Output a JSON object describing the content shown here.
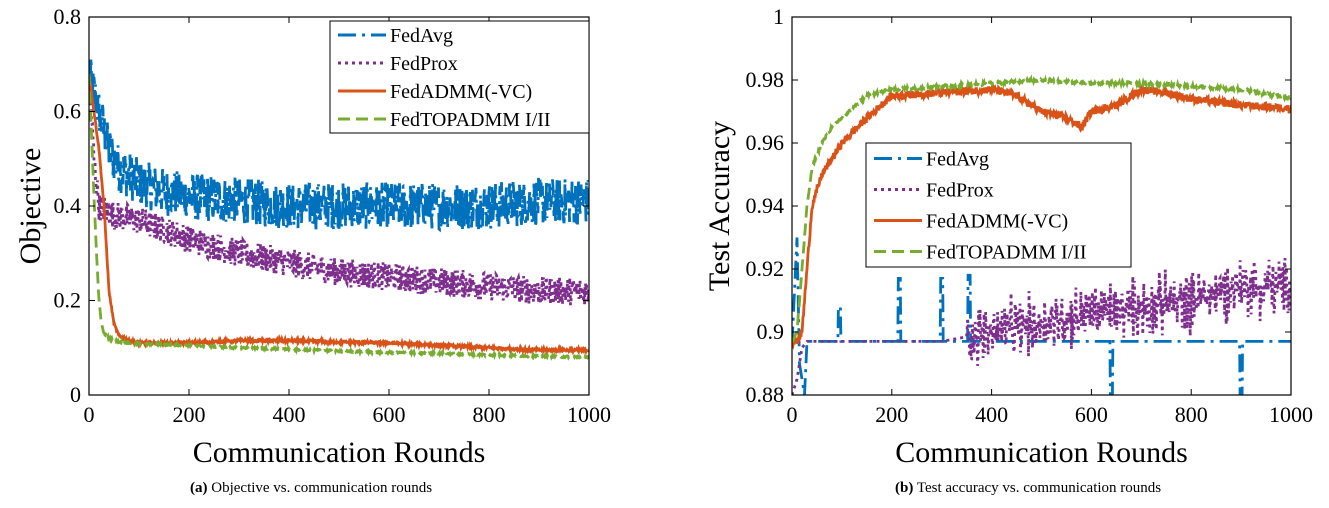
{
  "colors": {
    "FedAvg": "#0072BD",
    "FedProx": "#7E2F8E",
    "FedADMM": "#D95319",
    "FedTOPADMM": "#77AC30"
  },
  "chart_data": [
    {
      "type": "line",
      "xlabel": "Communication Rounds",
      "ylabel": "Objective",
      "xlim": [
        0,
        1000
      ],
      "ylim": [
        0,
        0.8
      ],
      "xticks": [
        "0",
        "200",
        "400",
        "600",
        "800",
        "1000"
      ],
      "yticks": [
        "0",
        "0.2",
        "0.4",
        "0.6",
        "0.8"
      ],
      "legend_position": "top-right",
      "caption_label": "(a)",
      "caption_text": "Objective vs. communication rounds",
      "series": [
        {
          "name": "FedAvg",
          "style": "dashdot",
          "x": [
            0,
            10,
            20,
            40,
            60,
            100,
            150,
            200,
            300,
            400,
            500,
            600,
            700,
            800,
            900,
            1000
          ],
          "y": [
            0.68,
            0.64,
            0.6,
            0.52,
            0.48,
            0.45,
            0.43,
            0.42,
            0.41,
            0.4,
            0.4,
            0.4,
            0.4,
            0.4,
            0.41,
            0.41
          ],
          "noise": 0.05
        },
        {
          "name": "FedProx",
          "style": "dotted",
          "x": [
            0,
            10,
            20,
            50,
            100,
            150,
            200,
            300,
            400,
            500,
            600,
            700,
            800,
            900,
            1000
          ],
          "y": [
            0.68,
            0.5,
            0.4,
            0.38,
            0.37,
            0.35,
            0.33,
            0.3,
            0.28,
            0.26,
            0.25,
            0.24,
            0.23,
            0.22,
            0.22
          ],
          "noise": 0.03
        },
        {
          "name": "FedADMM(-VC)",
          "style": "solid",
          "x": [
            0,
            10,
            20,
            30,
            40,
            50,
            60,
            80,
            100,
            200,
            300,
            400,
            500,
            600,
            700,
            800,
            900,
            1000
          ],
          "y": [
            0.68,
            0.6,
            0.52,
            0.4,
            0.22,
            0.15,
            0.125,
            0.115,
            0.11,
            0.11,
            0.115,
            0.115,
            0.112,
            0.11,
            0.105,
            0.1,
            0.095,
            0.095
          ],
          "noise": 0.003
        },
        {
          "name": "FedTOPADMM I/II",
          "style": "dashed",
          "x": [
            0,
            5,
            10,
            15,
            20,
            25,
            30,
            40,
            60,
            100,
            200,
            300,
            400,
            500,
            600,
            700,
            800,
            900,
            1000
          ],
          "y": [
            0.68,
            0.55,
            0.42,
            0.3,
            0.2,
            0.15,
            0.13,
            0.12,
            0.112,
            0.108,
            0.105,
            0.1,
            0.097,
            0.093,
            0.09,
            0.088,
            0.085,
            0.082,
            0.08
          ],
          "noise": 0.002
        }
      ]
    },
    {
      "type": "line",
      "xlabel": "Communication Rounds",
      "ylabel": "Test Accuracy",
      "xlim": [
        0,
        1000
      ],
      "ylim": [
        0.88,
        1
      ],
      "xticks": [
        "0",
        "200",
        "400",
        "600",
        "800",
        "1000"
      ],
      "yticks": [
        "0.88",
        "0.9",
        "0.92",
        "0.94",
        "0.96",
        "0.98",
        "1"
      ],
      "legend_position": "center-left",
      "caption_label": "(b)",
      "caption_text": "Test accuracy vs. communication rounds",
      "series": [
        {
          "name": "FedAvg",
          "style": "dashdot",
          "x": [
            0,
            10,
            15,
            20,
            25,
            30,
            40,
            1000
          ],
          "y": [
            0.896,
            0.93,
            0.89,
            0.885,
            0.88,
            0.897,
            0.897,
            0.897
          ],
          "noise": 0,
          "spikes": [
            [
              95,
              0.908
            ],
            [
              215,
              0.917
            ],
            [
              300,
              0.917
            ],
            [
              355,
              0.918
            ],
            [
              640,
              0.88
            ],
            [
              900,
              0.88
            ]
          ]
        },
        {
          "name": "FedProx",
          "style": "dotted",
          "x": [
            0,
            10,
            20,
            30,
            40,
            300,
            400,
            500,
            600,
            700,
            800,
            900,
            1000
          ],
          "y": [
            0.88,
            0.885,
            0.895,
            0.897,
            0.897,
            0.897,
            0.9,
            0.903,
            0.906,
            0.908,
            0.91,
            0.915,
            0.914
          ],
          "noise": 0.012,
          "noise_start": 350
        },
        {
          "name": "FedADMM(-VC)",
          "style": "solid",
          "x": [
            0,
            10,
            20,
            30,
            40,
            60,
            80,
            100,
            150,
            200,
            300,
            400,
            450,
            500,
            550,
            580,
            600,
            650,
            700,
            750,
            800,
            900,
            1000
          ],
          "y": [
            0.897,
            0.897,
            0.9,
            0.92,
            0.94,
            0.95,
            0.955,
            0.96,
            0.968,
            0.975,
            0.976,
            0.977,
            0.975,
            0.97,
            0.968,
            0.965,
            0.97,
            0.972,
            0.977,
            0.976,
            0.974,
            0.972,
            0.971
          ],
          "noise": 0.0012
        },
        {
          "name": "FedTOPADMM I/II",
          "style": "dashed",
          "x": [
            0,
            10,
            20,
            30,
            40,
            60,
            80,
            100,
            150,
            200,
            300,
            400,
            500,
            600,
            700,
            800,
            900,
            1000
          ],
          "y": [
            0.897,
            0.9,
            0.92,
            0.94,
            0.952,
            0.96,
            0.965,
            0.968,
            0.975,
            0.977,
            0.978,
            0.979,
            0.98,
            0.979,
            0.979,
            0.978,
            0.977,
            0.974
          ],
          "noise": 0.0005
        }
      ]
    }
  ]
}
